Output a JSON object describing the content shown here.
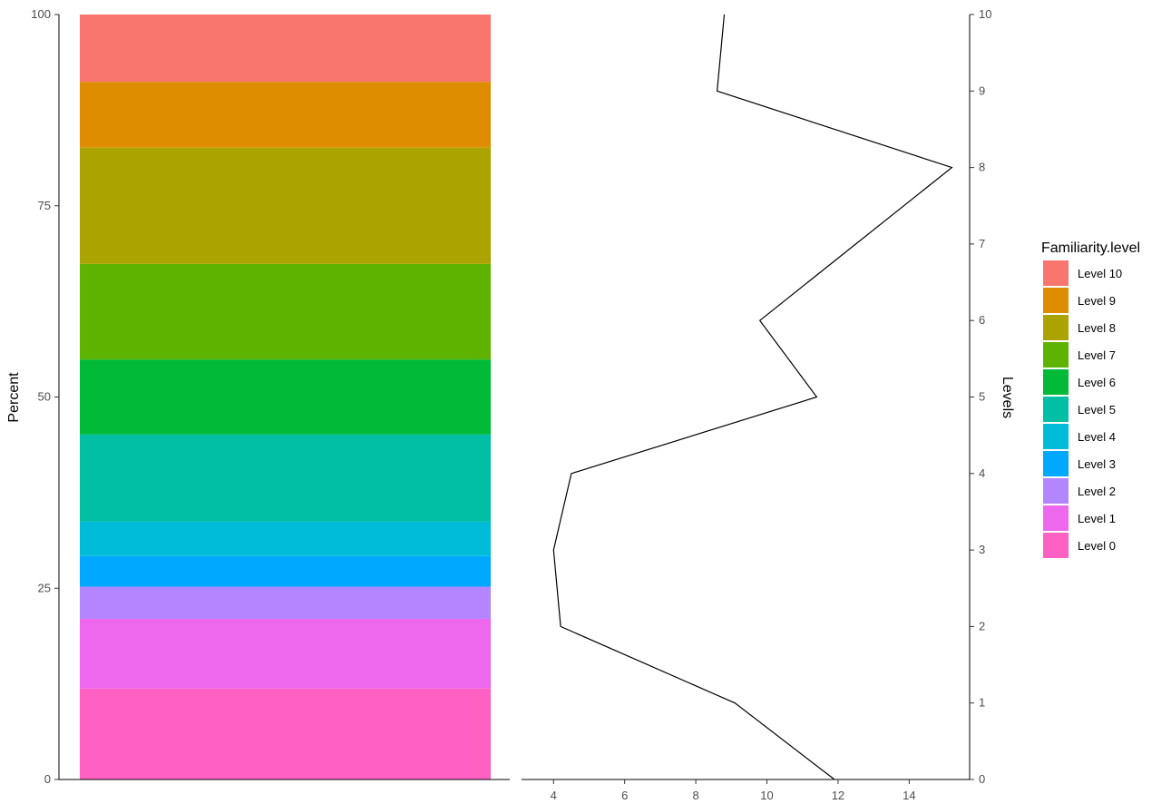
{
  "chart_data": [
    {
      "type": "bar",
      "stacked": true,
      "orientation": "vertical",
      "ylabel": "Percent",
      "ylim": [
        0,
        100
      ],
      "y_ticks": [
        "0",
        "25",
        "50",
        "75",
        "100"
      ],
      "series": [
        {
          "name": "Level 0",
          "value": 11.9,
          "color": "#FF61C3"
        },
        {
          "name": "Level 1",
          "value": 9.1,
          "color": "#ED68ED"
        },
        {
          "name": "Level 2",
          "value": 4.2,
          "color": "#B385FF"
        },
        {
          "name": "Level 3",
          "value": 4.0,
          "color": "#00A9FF"
        },
        {
          "name": "Level 4",
          "value": 4.5,
          "color": "#00BCD8"
        },
        {
          "name": "Level 5",
          "value": 11.4,
          "color": "#00BFA5"
        },
        {
          "name": "Level 6",
          "value": 9.8,
          "color": "#00BA38"
        },
        {
          "name": "Level 7",
          "value": 12.5,
          "color": "#5EB300"
        },
        {
          "name": "Level 8",
          "value": 15.2,
          "color": "#ABA300"
        },
        {
          "name": "Level 9",
          "value": 8.6,
          "color": "#DE8C00"
        },
        {
          "name": "Level 10",
          "value": 8.8,
          "color": "#F8766D"
        }
      ],
      "legend": {
        "title": "Familiarity.level",
        "position": "right",
        "labels": [
          "Level 10",
          "Level 9",
          "Level 8",
          "Level 7",
          "Level 6",
          "Level 5",
          "Level 4",
          "Level 3",
          "Level 2",
          "Level 1",
          "Level 0"
        ]
      }
    },
    {
      "type": "line",
      "ylabel": "Levels",
      "y_axis_side": "right",
      "x": [
        11.9,
        9.1,
        4.2,
        4.0,
        4.5,
        11.4,
        9.8,
        12.5,
        15.2,
        8.6,
        8.8
      ],
      "y": [
        0,
        1,
        2,
        3,
        4,
        5,
        6,
        7,
        8,
        9,
        10
      ],
      "xlim": [
        3.1,
        15.7
      ],
      "ylim": [
        0,
        10
      ],
      "x_ticks": [
        "4",
        "6",
        "8",
        "10",
        "12",
        "14"
      ],
      "y_ticks": [
        "0",
        "1",
        "2",
        "3",
        "4",
        "5",
        "6",
        "7",
        "8",
        "9",
        "10"
      ],
      "line_color": "#000000"
    }
  ]
}
